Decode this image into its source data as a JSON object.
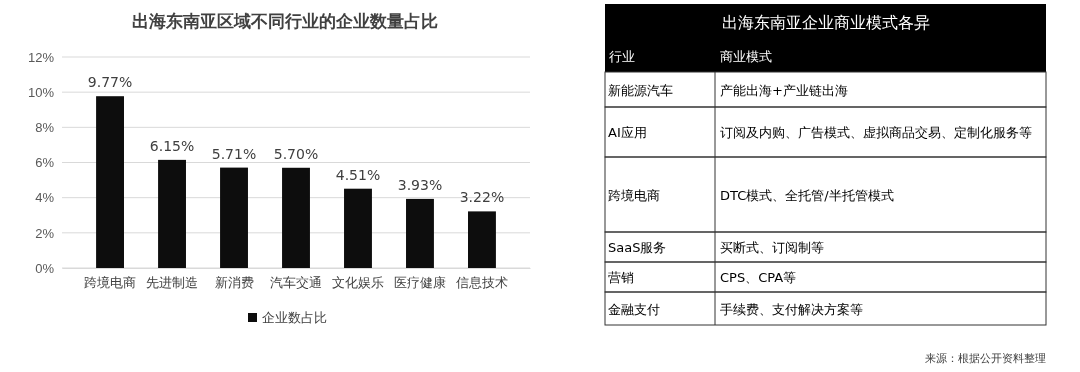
{
  "chart_data": [
    {
      "type": "bar",
      "title": "出海东南亚区域不同行业的企业数量占比",
      "categories": [
        "跨境电商",
        "先进制造",
        "新消费",
        "汽车交通",
        "文化娱乐",
        "医疗健康",
        "信息技术"
      ],
      "series": [
        {
          "name": "企业数占比",
          "color": "#0d0d0d",
          "values": [
            9.77,
            6.15,
            5.71,
            5.7,
            4.51,
            3.93,
            3.22
          ],
          "value_labels": [
            "9.77%",
            "6.15%",
            "5.71%",
            "5.70%",
            "4.51%",
            "3.93%",
            "3.22%"
          ]
        }
      ],
      "ylim": [
        0,
        12
      ],
      "yticks": [
        {
          "value": 0,
          "label": "0%"
        },
        {
          "value": 2,
          "label": "2%"
        },
        {
          "value": 4,
          "label": "4%"
        },
        {
          "value": 6,
          "label": "6%"
        },
        {
          "value": 8,
          "label": "8%"
        },
        {
          "value": 10,
          "label": "10%"
        },
        {
          "value": 12,
          "label": "12%"
        }
      ],
      "grid": "y",
      "legend": "bottom"
    },
    {
      "type": "other",
      "title": "出海东南亚企业商业模式各异",
      "annotations": [
        "行业",
        "商业模式",
        "新能源汽车",
        "产能出海+产业链出海",
        "AI应用",
        "订阅及内购、广告模式、虚拟商品交易、定制化服务等",
        "跨境电商",
        "DTC模式、全托管/半托管模式",
        "SaaS服务",
        "买断式、订阅制等",
        "营销",
        "CPS、CPA等",
        "金融支付",
        "手续费、支付解决方案等",
        "来源：根据公开资料整理"
      ]
    }
  ]
}
